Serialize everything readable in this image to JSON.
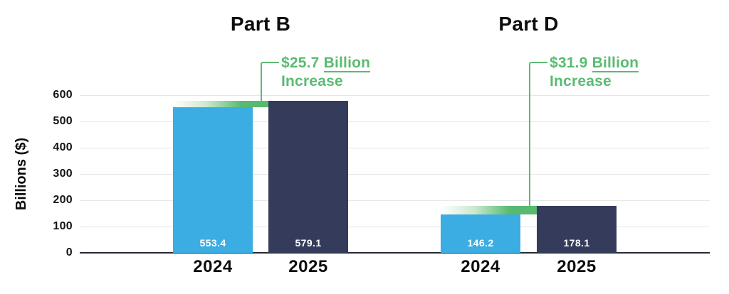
{
  "chart_data": {
    "type": "bar",
    "ylabel": "Billions ($)",
    "ylim": [
      0,
      600
    ],
    "yticks": [
      0,
      100,
      200,
      300,
      400,
      500,
      600
    ],
    "grid": true,
    "legend": "none",
    "categories": [
      "2024",
      "2025"
    ],
    "groups": [
      {
        "title": "Part B",
        "values": [
          553.4,
          579.1
        ],
        "bar_labels": [
          "553.4",
          "579.1"
        ],
        "annotation": {
          "amount": "$25.7",
          "underlined_word": "Billion",
          "second_line": "Increase"
        }
      },
      {
        "title": "Part D",
        "values": [
          146.2,
          178.1
        ],
        "bar_labels": [
          "146.2",
          "178.1"
        ],
        "annotation": {
          "amount": "$31.9",
          "underlined_word": "Billion",
          "second_line": "Increase"
        }
      }
    ],
    "colors": {
      "bar_2024": "#3BADE2",
      "bar_2025": "#353C5B",
      "annotation_green": "#5ABB72",
      "cap_gradient_end": "#57BA70",
      "gridline": "#E6E6E6",
      "axis_line": "#262A33",
      "text_dark": "#0D0D0D",
      "bar_value_text": "#FFFFFF"
    }
  }
}
